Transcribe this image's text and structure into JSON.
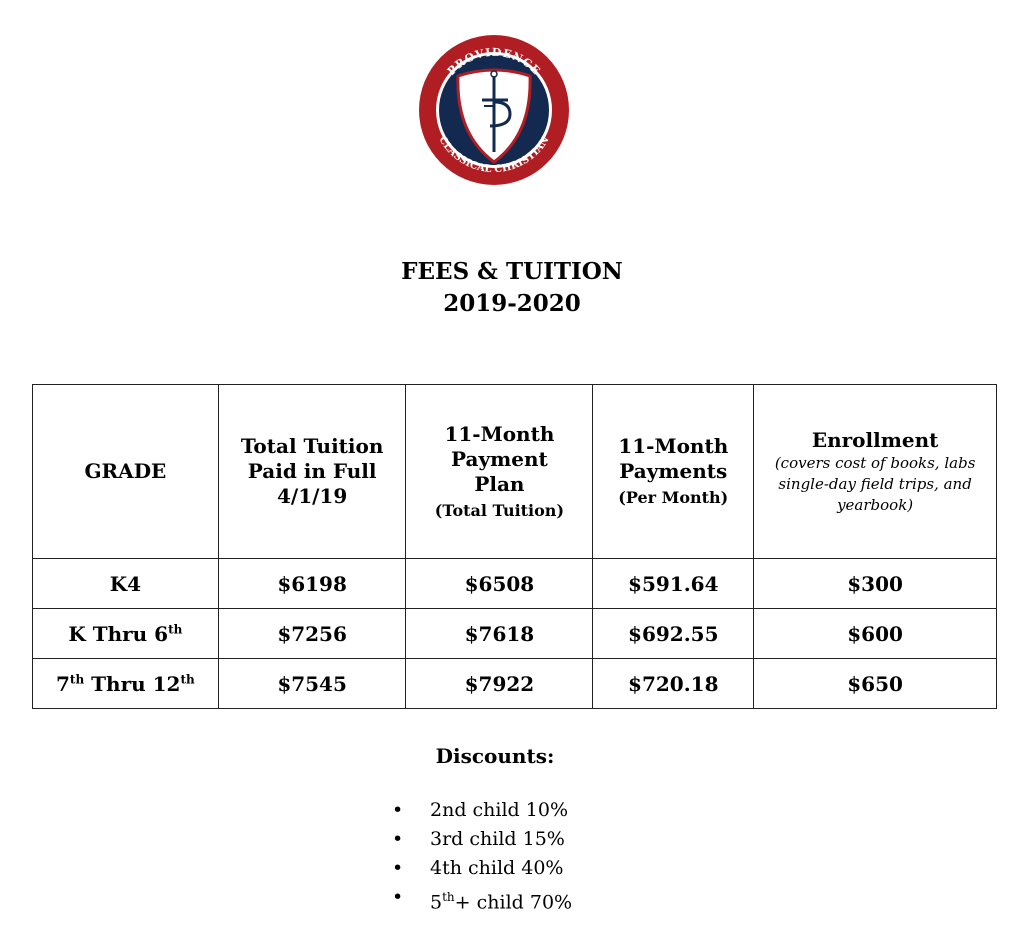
{
  "logo": {
    "top_text": "PROVIDENCE",
    "bottom_text": "CLASSICAL CHRISTIAN",
    "colors": {
      "red": "#b01e23",
      "navy": "#14294f"
    }
  },
  "title": {
    "line1": "FEES & TUITION",
    "line2": "2019-2020"
  },
  "table": {
    "headers": [
      {
        "main": "GRADE"
      },
      {
        "main": "Total Tuition Paid in Full 4/1/19"
      },
      {
        "main": "11-Month Payment Plan",
        "sub": "(Total Tuition)"
      },
      {
        "main": "11-Month Payments",
        "sub": "(Per Month)"
      },
      {
        "main": "Enrollment",
        "sub": "(covers cost of books, labs single-day field trips, and yearbook)"
      }
    ],
    "rows": [
      {
        "grade": {
          "a": "K4"
        },
        "full": "$6198",
        "plan": "$6508",
        "monthly": "$591.64",
        "enroll": "$300"
      },
      {
        "grade": {
          "a": "K Thru 6",
          "sup": "th"
        },
        "full": "$7256",
        "plan": "$7618",
        "monthly": "$692.55",
        "enroll": "$600"
      },
      {
        "grade": {
          "a": "7",
          "sup": "th",
          "b": " Thru 12",
          "sup2": "th"
        },
        "full": "$7545",
        "plan": "$7922",
        "monthly": "$720.18",
        "enroll": "$650"
      }
    ]
  },
  "discounts": {
    "heading": "Discounts:",
    "bullet": "•",
    "items": [
      {
        "a": "2nd child 10%"
      },
      {
        "a": "3rd child 15%"
      },
      {
        "a": "4th child 40%"
      },
      {
        "a": "5",
        "sup": "th",
        "b": "+ child 70%"
      }
    ]
  }
}
